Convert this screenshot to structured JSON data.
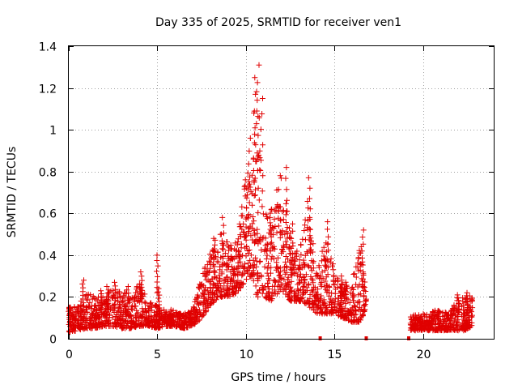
{
  "chart_data": {
    "type": "scatter",
    "title": "Day 335 of 2025, SRMTID for receiver ven1",
    "xlabel": "GPS time / hours",
    "ylabel": "SRMTID / TECUs",
    "xlim": [
      0,
      24
    ],
    "ylim": [
      0,
      1.4
    ],
    "xticks": [
      0,
      5,
      10,
      15,
      20
    ],
    "xtick_labels": [
      "0",
      "5",
      "10",
      "15",
      "20"
    ],
    "yticks": [
      0,
      0.2,
      0.4,
      0.6,
      0.8,
      1.0,
      1.2,
      1.4
    ],
    "ytick_labels": [
      "0",
      "0.2",
      "0.4",
      "0.6",
      "0.8",
      "1",
      "1.2",
      "1.4"
    ],
    "grid": true,
    "marker": "+",
    "color": "#e00000",
    "series": [
      {
        "name": "ven1",
        "envelope": [
          [
            0.0,
            0.03,
            0.15
          ],
          [
            0.5,
            0.04,
            0.16
          ],
          [
            1.0,
            0.05,
            0.22
          ],
          [
            1.5,
            0.05,
            0.2
          ],
          [
            2.0,
            0.06,
            0.2
          ],
          [
            2.5,
            0.06,
            0.24
          ],
          [
            3.0,
            0.05,
            0.22
          ],
          [
            3.5,
            0.05,
            0.22
          ],
          [
            4.0,
            0.06,
            0.28
          ],
          [
            4.5,
            0.06,
            0.18
          ],
          [
            5.0,
            0.05,
            0.16
          ],
          [
            5.5,
            0.06,
            0.14
          ],
          [
            6.0,
            0.06,
            0.14
          ],
          [
            6.5,
            0.05,
            0.12
          ],
          [
            7.0,
            0.06,
            0.14
          ],
          [
            7.5,
            0.1,
            0.3
          ],
          [
            8.0,
            0.16,
            0.42
          ],
          [
            8.5,
            0.2,
            0.52
          ],
          [
            9.0,
            0.2,
            0.46
          ],
          [
            9.5,
            0.22,
            0.46
          ],
          [
            10.0,
            0.28,
            0.78
          ],
          [
            10.3,
            0.3,
            1.0
          ],
          [
            10.6,
            0.2,
            1.3
          ],
          [
            11.0,
            0.2,
            0.62
          ],
          [
            11.5,
            0.18,
            0.64
          ],
          [
            12.0,
            0.24,
            0.8
          ],
          [
            12.5,
            0.18,
            0.56
          ],
          [
            13.0,
            0.18,
            0.4
          ],
          [
            13.5,
            0.16,
            0.7
          ],
          [
            14.0,
            0.12,
            0.32
          ],
          [
            14.5,
            0.12,
            0.5
          ],
          [
            15.0,
            0.12,
            0.34
          ],
          [
            15.5,
            0.1,
            0.28
          ],
          [
            16.0,
            0.08,
            0.28
          ],
          [
            16.5,
            0.08,
            0.46
          ],
          [
            16.8,
            0.16,
            0.22
          ],
          [
            19.3,
            0.04,
            0.12
          ],
          [
            19.8,
            0.04,
            0.12
          ],
          [
            20.3,
            0.04,
            0.12
          ],
          [
            20.8,
            0.04,
            0.14
          ],
          [
            21.5,
            0.04,
            0.12
          ],
          [
            22.0,
            0.04,
            0.2
          ],
          [
            22.5,
            0.04,
            0.22
          ],
          [
            22.8,
            0.06,
            0.2
          ]
        ],
        "peaks": [
          [
            0.05,
            0.15
          ],
          [
            0.8,
            0.28
          ],
          [
            1.8,
            0.23
          ],
          [
            2.2,
            0.25
          ],
          [
            2.6,
            0.27
          ],
          [
            3.3,
            0.25
          ],
          [
            4.1,
            0.32
          ],
          [
            5.0,
            0.4
          ],
          [
            5.1,
            0.24
          ],
          [
            8.2,
            0.48
          ],
          [
            8.7,
            0.58
          ],
          [
            9.5,
            0.45
          ],
          [
            10.0,
            0.72
          ],
          [
            10.2,
            0.96
          ],
          [
            10.5,
            1.25
          ],
          [
            10.7,
            1.31
          ],
          [
            10.9,
            1.15
          ],
          [
            10.4,
            0.86
          ],
          [
            11.4,
            0.62
          ],
          [
            12.3,
            0.82
          ],
          [
            12.6,
            0.55
          ],
          [
            13.6,
            0.77
          ],
          [
            14.6,
            0.56
          ],
          [
            15.4,
            0.3
          ],
          [
            16.6,
            0.52
          ],
          [
            22.5,
            0.22
          ],
          [
            22.0,
            0.21
          ]
        ],
        "gap_points": [
          [
            14.2,
            0.0
          ],
          [
            16.8,
            0.0
          ],
          [
            19.2,
            0.0
          ]
        ]
      }
    ]
  }
}
